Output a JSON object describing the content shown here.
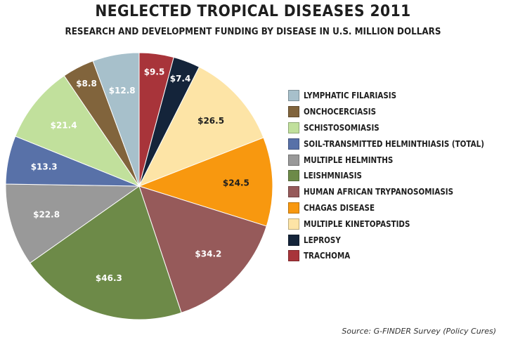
{
  "chart_data": {
    "type": "pie",
    "title": "NEGLECTED TROPICAL DISEASES 2011",
    "subtitle": "RESEARCH AND DEVELOPMENT FUNDING BY DISEASE IN U.S. MILLION DOLLARS",
    "legend_position": "right",
    "source": "Source: G-FINDER Survey (Policy Cures)",
    "slices": [
      {
        "name": "TRACHOMA",
        "value": 9.5,
        "label": "$9.5",
        "color": "#a8343a",
        "label_color": "#ffffff"
      },
      {
        "name": "LEPROSY",
        "value": 7.4,
        "label": "$7.4",
        "color": "#14243a",
        "label_color": "#ffffff"
      },
      {
        "name": "MULTIPLE KINETOPASTIDS",
        "value": 26.5,
        "label": "$26.5",
        "color": "#fde4a6",
        "label_color": "#1e1e1e"
      },
      {
        "name": "CHAGAS DISEASE",
        "value": 24.5,
        "label": "$24.5",
        "color": "#f8980f",
        "label_color": "#1e1e1e"
      },
      {
        "name": "HUMAN AFRICAN TRYPANOSOMIASIS",
        "value": 34.2,
        "label": "$34.2",
        "color": "#965a5a",
        "label_color": "#ffffff"
      },
      {
        "name": "LEISHMNIASIS",
        "value": 46.3,
        "label": "$46.3",
        "color": "#6d8a48",
        "label_color": "#ffffff"
      },
      {
        "name": "MULTIPLE HELMINTHS",
        "value": 22.8,
        "label": "$22.8",
        "color": "#999999",
        "label_color": "#ffffff"
      },
      {
        "name": "SOIL-TRANSMITTED HELMINTHIASIS (TOTAL)",
        "value": 13.3,
        "label": "$13.3",
        "color": "#5871a8",
        "label_color": "#ffffff"
      },
      {
        "name": "SCHISTOSOMIASIS",
        "value": 21.4,
        "label": "$21.4",
        "color": "#c1e09c",
        "label_color": "#ffffff"
      },
      {
        "name": "ONCHOCERCIASIS",
        "value": 8.8,
        "label": "$8.8",
        "color": "#81643c",
        "label_color": "#ffffff"
      },
      {
        "name": "LYMPHATIC FILARIASIS",
        "value": 12.8,
        "label": "$12.8",
        "color": "#a7c0cb",
        "label_color": "#ffffff"
      }
    ],
    "legend": [
      {
        "label": "LYMPHATIC FILARIASIS",
        "color": "#a7c0cb"
      },
      {
        "label": "ONCHOCERCIASIS",
        "color": "#81643c"
      },
      {
        "label": "SCHISTOSOMIASIS",
        "color": "#c1e09c"
      },
      {
        "label": "SOIL-TRANSMITTED HELMINTHIASIS (TOTAL)",
        "color": "#5871a8"
      },
      {
        "label": "MULTIPLE HELMINTHS",
        "color": "#999999"
      },
      {
        "label": "LEISHMNIASIS",
        "color": "#6d8a48"
      },
      {
        "label": "HUMAN AFRICAN TRYPANOSOMIASIS",
        "color": "#965a5a"
      },
      {
        "label": "CHAGAS DISEASE",
        "color": "#f8980f"
      },
      {
        "label": "MULTIPLE KINETOPASTIDS",
        "color": "#fde4a6"
      },
      {
        "label": "LEPROSY",
        "color": "#14243a"
      },
      {
        "label": "TRACHOMA",
        "color": "#a8343a"
      }
    ]
  }
}
